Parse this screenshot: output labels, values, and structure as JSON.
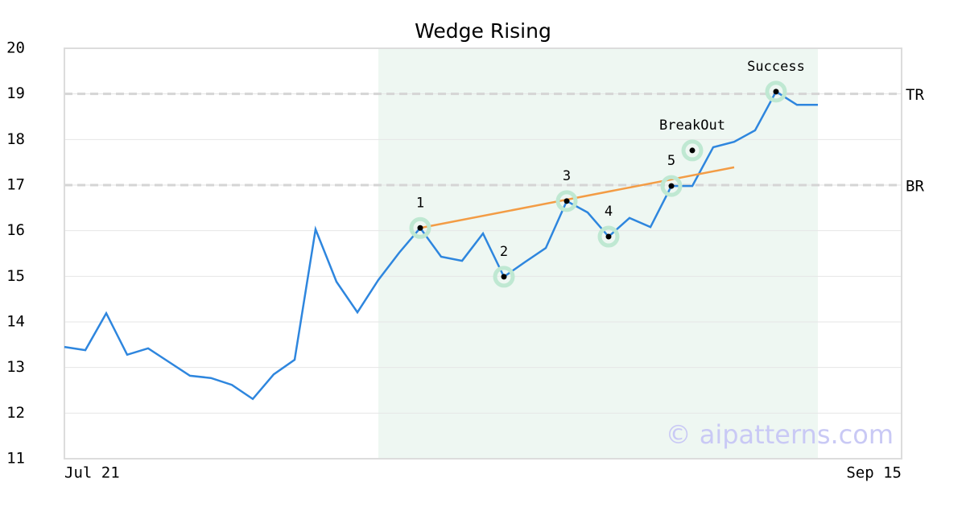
{
  "chart_data": {
    "type": "line",
    "title": "Wedge Rising",
    "x": [
      0,
      1,
      2,
      3,
      4,
      5,
      6,
      7,
      8,
      9,
      10,
      11,
      12,
      13,
      14,
      15,
      16,
      17,
      18,
      19,
      20,
      21,
      22,
      23,
      24,
      25,
      26,
      27,
      28,
      29,
      30,
      31,
      32,
      33,
      34,
      35,
      36
    ],
    "values": [
      13.45,
      13.38,
      14.19,
      13.28,
      13.42,
      13.12,
      12.82,
      12.77,
      12.62,
      12.31,
      12.85,
      13.17,
      16.03,
      14.88,
      14.21,
      14.92,
      15.52,
      16.06,
      15.43,
      15.34,
      15.94,
      14.99,
      15.31,
      15.62,
      16.65,
      16.4,
      15.87,
      16.28,
      16.08,
      16.98,
      16.98,
      17.83,
      17.95,
      18.2,
      19.05,
      18.76,
      18.76
    ],
    "color": "#2e86de",
    "xlim": [
      0,
      40
    ],
    "xticks": [
      {
        "value": 0,
        "label": "Jul 21"
      },
      {
        "value": 40,
        "label": "Sep 15"
      }
    ],
    "ylim": [
      11,
      20
    ],
    "yticks": [
      11,
      12,
      13,
      14,
      15,
      16,
      17,
      18,
      19,
      20
    ],
    "grid": true,
    "shaded_x": [
      15,
      36
    ],
    "trendline": {
      "x": [
        17,
        32
      ],
      "values": [
        16.06,
        17.39
      ],
      "color": "#f39c45"
    },
    "levels": [
      {
        "label": "TR",
        "value": 19
      },
      {
        "label": "BR",
        "value": 17
      }
    ],
    "annotations": [
      {
        "label": "1",
        "x": 17,
        "value": 16.06
      },
      {
        "label": "2",
        "x": 21,
        "value": 14.99
      },
      {
        "label": "3",
        "x": 24,
        "value": 16.65
      },
      {
        "label": "4",
        "x": 26,
        "value": 15.87
      },
      {
        "label": "5",
        "x": 29,
        "value": 16.98
      },
      {
        "label": "BreakOut",
        "x": 30,
        "value": 17.76
      },
      {
        "label": "Success",
        "x": 34,
        "value": 19.05
      }
    ],
    "watermark": "© aipatterns.com"
  }
}
